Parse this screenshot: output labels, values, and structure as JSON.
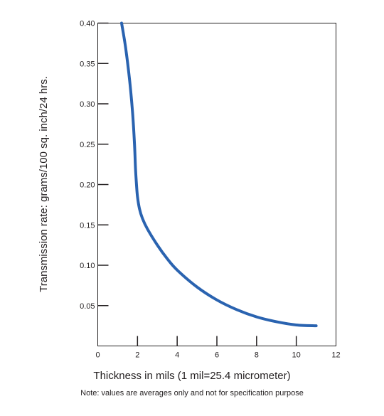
{
  "chart_data": {
    "type": "line",
    "xlabel": "Thickness in mils (1 mil=25.4 micrometer)",
    "ylabel": "Transmission rate: grams/100 sq. inch/24 hrs.",
    "note": "Note: values are averages only and not for specification purpose",
    "xlim": [
      0,
      12
    ],
    "ylim": [
      0,
      0.4
    ],
    "x_ticks": [
      0,
      2,
      4,
      6,
      8,
      10,
      12
    ],
    "x_tick_labels": [
      "0",
      "2",
      "4",
      "6",
      "8",
      "10",
      "12"
    ],
    "y_ticks": [
      0.05,
      0.1,
      0.15,
      0.2,
      0.25,
      0.3,
      0.35,
      0.4
    ],
    "y_tick_labels": [
      "0.05",
      "0.10",
      "0.15",
      "0.20",
      "0.25",
      "0.30",
      "0.35",
      "0.40"
    ],
    "grid": false,
    "line_color": "#2a63b0",
    "series": [
      {
        "x": [
          1.2,
          1.4,
          1.6,
          1.75,
          1.85,
          1.9,
          1.95,
          2.0,
          2.1,
          2.25,
          2.5,
          3.0,
          3.5,
          4.0,
          5.0,
          6.0,
          7.0,
          8.0,
          9.0,
          10.0,
          11.0
        ],
        "y": [
          0.4,
          0.37,
          0.33,
          0.29,
          0.25,
          0.22,
          0.2,
          0.185,
          0.17,
          0.158,
          0.145,
          0.125,
          0.108,
          0.094,
          0.073,
          0.057,
          0.045,
          0.036,
          0.03,
          0.026,
          0.025
        ]
      }
    ]
  }
}
